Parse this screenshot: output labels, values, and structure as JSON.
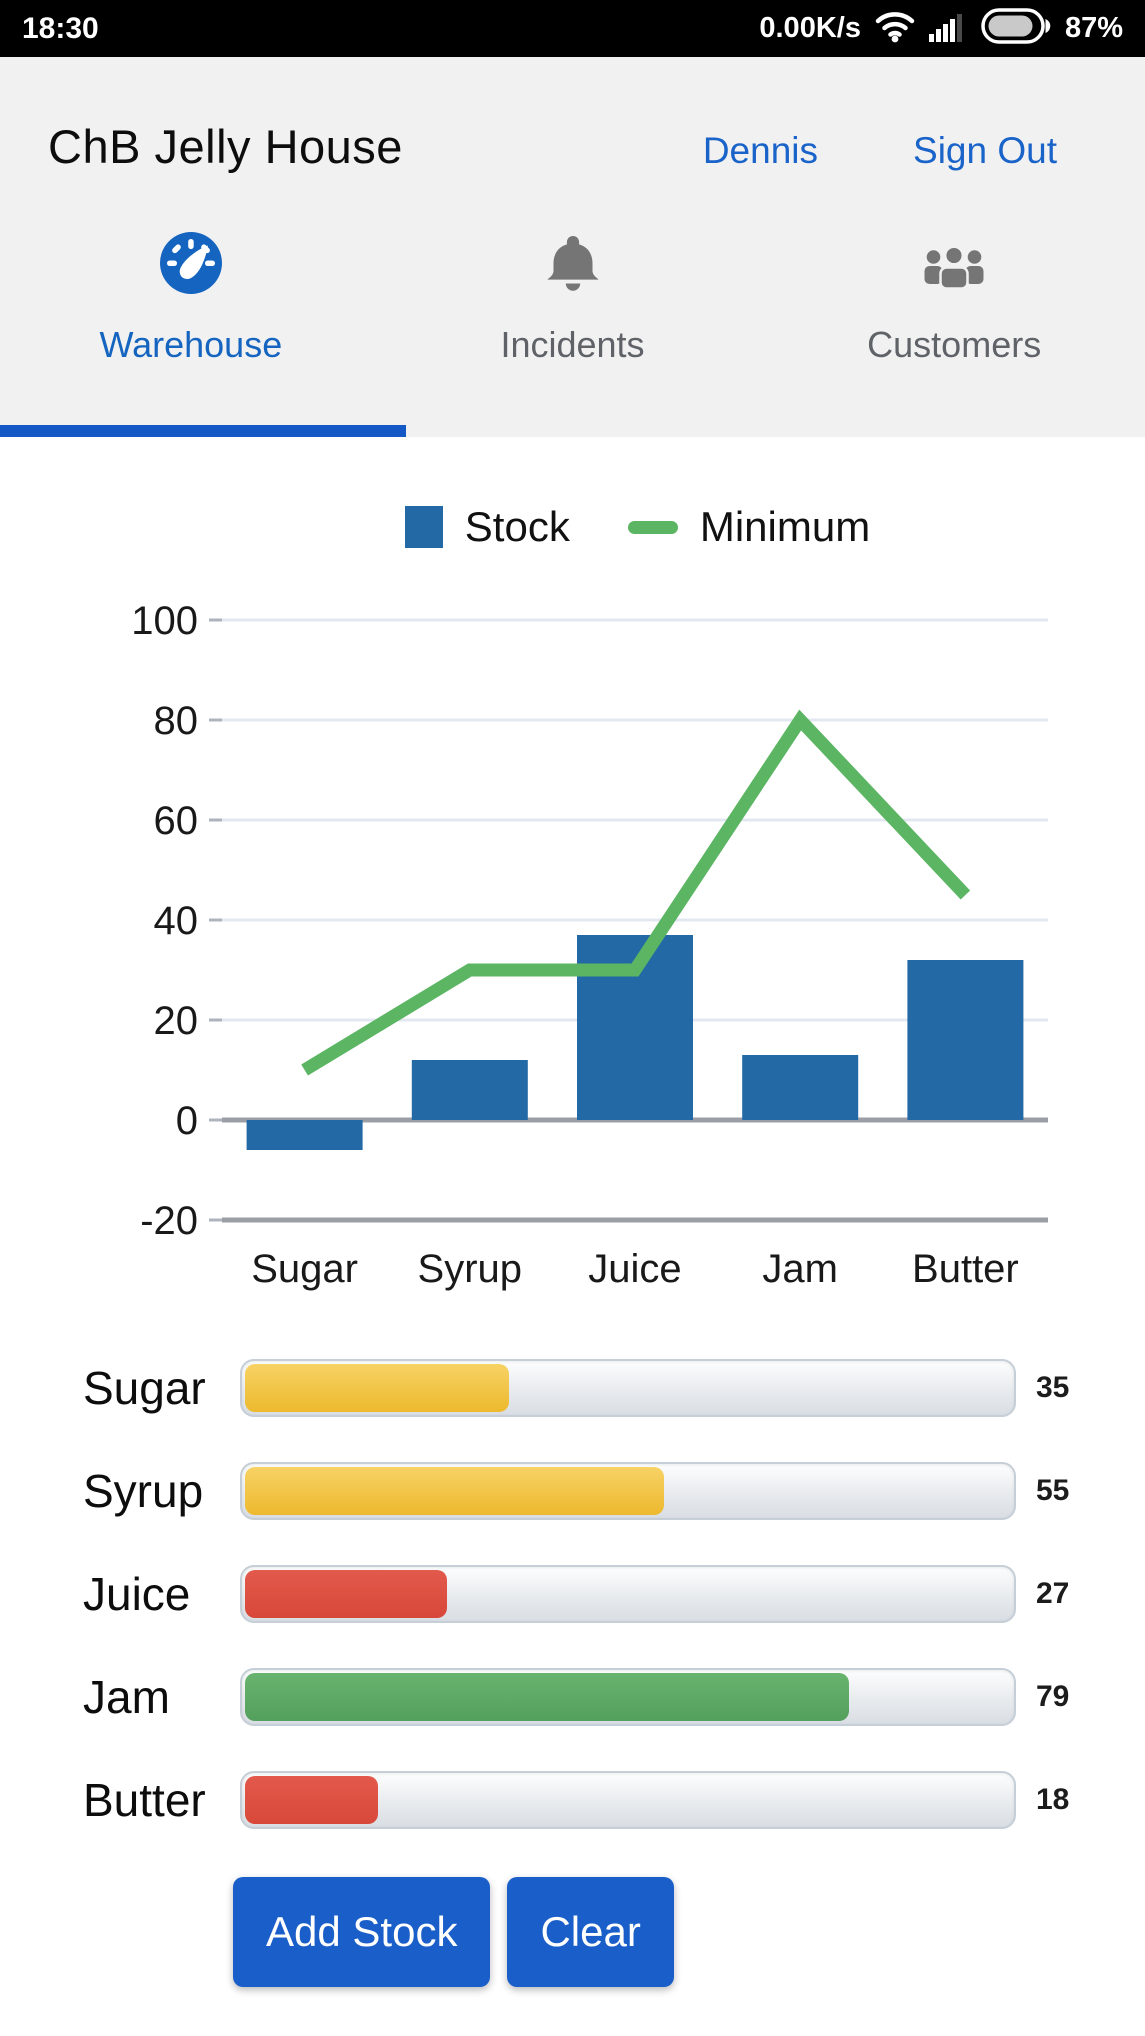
{
  "status_bar": {
    "time": "18:30",
    "network_speed": "0.00K/s",
    "battery_percent": "87%"
  },
  "header": {
    "title": "ChB Jelly House",
    "user_label": "Dennis",
    "sign_out_label": "Sign Out"
  },
  "tabs": [
    {
      "label": "Warehouse",
      "icon": "gauge-icon",
      "active": true
    },
    {
      "label": "Incidents",
      "icon": "bell-icon",
      "active": false
    },
    {
      "label": "Customers",
      "icon": "people-icon",
      "active": false
    }
  ],
  "colors": {
    "accent_blue": "#1a5fc9",
    "tab_active_blue": "#1565c0",
    "bar_blue": "#2269a5",
    "line_green": "#5bb563",
    "status_yellow": "#edb92e",
    "status_red": "#d84839",
    "status_green": "#539f5c"
  },
  "chart_data": {
    "type": "combo",
    "categories": [
      "Sugar",
      "Syrup",
      "Juice",
      "Jam",
      "Butter"
    ],
    "series": [
      {
        "name": "Stock",
        "type": "bar",
        "color": "#2269a5",
        "values": [
          -6,
          12,
          37,
          13,
          32
        ]
      },
      {
        "name": "Minimum",
        "type": "line",
        "color": "#5bb563",
        "values": [
          10,
          30,
          30,
          80,
          45
        ]
      }
    ],
    "ylim": [
      -20,
      100
    ],
    "yticks": [
      100,
      80,
      60,
      40,
      20,
      0,
      -20
    ],
    "grid": true,
    "legend_position": "top"
  },
  "stock_levels": [
    {
      "label": "Sugar",
      "value": 35,
      "color": "yellow"
    },
    {
      "label": "Syrup",
      "value": 55,
      "color": "yellow"
    },
    {
      "label": "Juice",
      "value": 27,
      "color": "red"
    },
    {
      "label": "Jam",
      "value": 79,
      "color": "green"
    },
    {
      "label": "Butter",
      "value": 18,
      "color": "red"
    }
  ],
  "actions": {
    "add_stock_label": "Add Stock",
    "clear_label": "Clear"
  }
}
